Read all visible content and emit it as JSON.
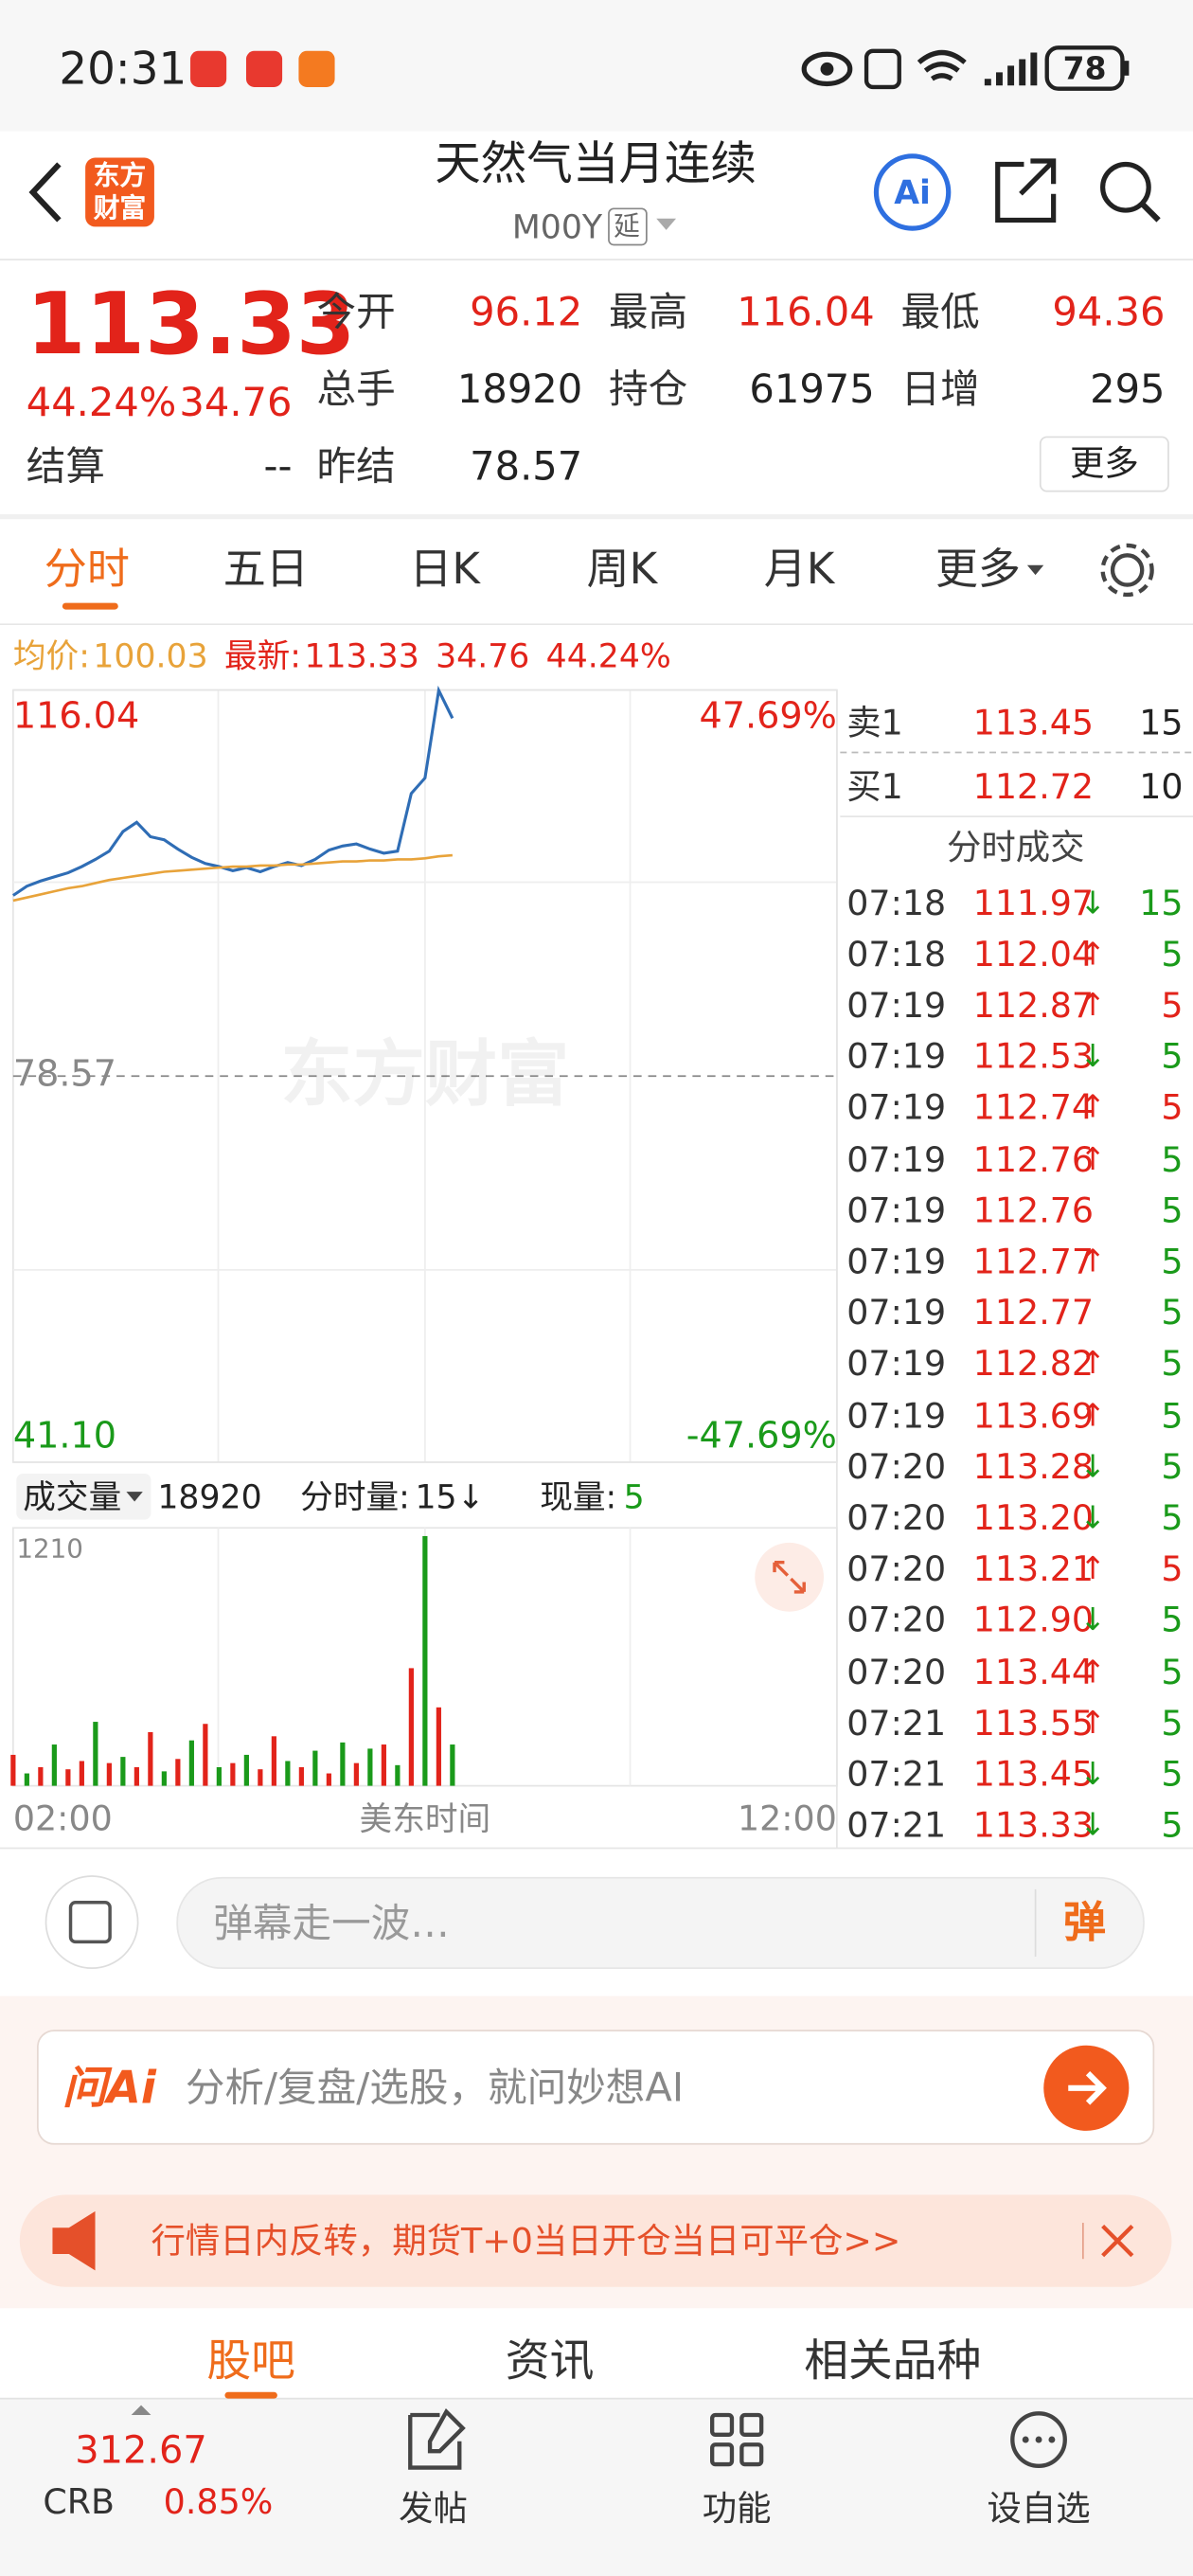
{
  "status_bar": {
    "time": "20:31",
    "battery": "78"
  },
  "header": {
    "logo": [
      "东方",
      "财富"
    ],
    "title": "天然气当月连续",
    "code": "M00Y",
    "tag": "延"
  },
  "quote": {
    "price": "113.33",
    "change_pct": "44.24%",
    "change": "34.76",
    "fields": [
      {
        "label": "今开",
        "value": "96.12"
      },
      {
        "label": "最高",
        "value": "116.04"
      },
      {
        "label": "最低",
        "value": "94.36"
      },
      {
        "label": "总手",
        "value": "18920"
      },
      {
        "label": "持仓",
        "value": "61975"
      },
      {
        "label": "日增",
        "value": "295"
      },
      {
        "label": "昨结",
        "value": "78.57"
      }
    ],
    "settle": {
      "label": "结算",
      "value": "--"
    },
    "more": "更多"
  },
  "tabs": [
    "分时",
    "五日",
    "日K",
    "周K",
    "月K",
    "更多"
  ],
  "info_bar": {
    "avg_label": "均价:",
    "avg": "100.03",
    "latest_label": "最新:",
    "latest": "113.33",
    "change": "34.76",
    "change_pct": "44.24%"
  },
  "watermark": "东方财富",
  "chart_data": [
    {
      "type": "line",
      "x": [
        "02:00",
        "02:10",
        "02:20",
        "02:30",
        "02:40",
        "02:50",
        "03:00",
        "03:10",
        "03:20",
        "03:30",
        "03:40",
        "03:50",
        "04:00",
        "04:10",
        "04:20",
        "04:30",
        "04:40",
        "04:50",
        "05:00",
        "05:10",
        "05:20",
        "05:30",
        "05:40",
        "05:50",
        "06:00",
        "06:10",
        "06:20",
        "06:30",
        "06:40",
        "06:50",
        "07:00",
        "07:10",
        "07:20"
      ],
      "series": [
        {
          "color": "#2f6db5",
          "values": [
            96.1,
            97.0,
            97.5,
            97.9,
            98.3,
            98.9,
            99.6,
            100.4,
            102.3,
            103.2,
            101.8,
            101.5,
            100.6,
            99.8,
            99.2,
            98.9,
            98.5,
            98.8,
            98.4,
            98.9,
            99.3,
            99.0,
            99.6,
            100.5,
            100.9,
            101.1,
            100.6,
            100.2,
            100.4,
            106.0,
            107.5,
            116.0,
            113.3
          ]
        },
        {
          "color": "#e8a33a",
          "values": [
            95.6,
            95.9,
            96.2,
            96.5,
            96.8,
            97.0,
            97.3,
            97.6,
            97.8,
            98.0,
            98.2,
            98.4,
            98.5,
            98.6,
            98.7,
            98.8,
            98.9,
            98.9,
            99.0,
            99.0,
            99.1,
            99.1,
            99.2,
            99.3,
            99.4,
            99.4,
            99.5,
            99.5,
            99.6,
            99.6,
            99.7,
            99.9,
            100.0
          ]
        }
      ],
      "xlim": [
        "02:00",
        "12:00"
      ],
      "ylim": [
        41.1,
        116.04
      ],
      "yticks": [
        116.04,
        78.57,
        {
          "value": 41.1,
          "label": "41.10"
        }
      ],
      "y2lim": [
        -47.69,
        47.69
      ],
      "y2ticks": [
        {
          "value": 47.69,
          "label": "47.69%"
        },
        {
          "value": -47.69,
          "label": "-47.69%"
        }
      ]
    },
    {
      "type": "bar",
      "x": [
        "02:00",
        "02:10",
        "02:20",
        "02:30",
        "02:40",
        "02:50",
        "03:00",
        "03:10",
        "03:20",
        "03:30",
        "03:40",
        "03:50",
        "04:00",
        "04:10",
        "04:20",
        "04:30",
        "04:40",
        "04:50",
        "05:00",
        "05:10",
        "05:20",
        "05:30",
        "05:40",
        "05:50",
        "06:00",
        "06:10",
        "06:20",
        "06:30",
        "06:40",
        "06:50",
        "07:00",
        "07:10",
        "07:20"
      ],
      "values": [
        150,
        60,
        90,
        200,
        80,
        120,
        310,
        110,
        140,
        90,
        260,
        70,
        130,
        220,
        300,
        90,
        110,
        150,
        80,
        240,
        120,
        90,
        170,
        60,
        210,
        110,
        180,
        200,
        100,
        570,
        1210,
        380,
        200
      ],
      "colors": [
        "#e2231a",
        "#1a9a1a",
        "#e2231a",
        "#1a9a1a",
        "#e2231a",
        "#e2231a",
        "#1a9a1a",
        "#e2231a",
        "#1a9a1a",
        "#e2231a",
        "#e2231a",
        "#1a9a1a",
        "#e2231a",
        "#1a9a1a",
        "#e2231a",
        "#1a9a1a",
        "#e2231a",
        "#1a9a1a",
        "#e2231a",
        "#e2231a",
        "#1a9a1a",
        "#e2231a",
        "#1a9a1a",
        "#e2231a",
        "#1a9a1a",
        "#e2231a",
        "#1a9a1a",
        "#e2231a",
        "#1a9a1a",
        "#e2231a",
        "#1a9a1a",
        "#e2231a",
        "#1a9a1a"
      ],
      "xlim": [
        "02:00",
        "12:00"
      ],
      "xticks": [
        "02:00",
        "12:00"
      ],
      "xlabel": "美东时间",
      "ylim": [
        0,
        1210
      ],
      "yticks": [
        1210
      ]
    }
  ],
  "volume_header": {
    "label": "成交量",
    "total": "18920",
    "tick_label": "分时量:",
    "tick": "15↓",
    "current_label": "现量:",
    "current": "5"
  },
  "order_book": [
    {
      "side": "卖1",
      "price": "113.45",
      "volume": "15"
    },
    {
      "side": "买1",
      "price": "112.72",
      "volume": "10"
    }
  ],
  "trades": {
    "title": "分时成交",
    "rows": [
      {
        "time": "07:18",
        "price": "111.97",
        "arrow": "↓",
        "volume": "15",
        "color": "#1a9a1a"
      },
      {
        "time": "07:18",
        "price": "112.04",
        "arrow": "↑",
        "volume": "5",
        "color": "#1a9a1a"
      },
      {
        "time": "07:19",
        "price": "112.87",
        "arrow": "↑",
        "volume": "5",
        "color": "#e2231a"
      },
      {
        "time": "07:19",
        "price": "112.53",
        "arrow": "↓",
        "volume": "5",
        "color": "#1a9a1a"
      },
      {
        "time": "07:19",
        "price": "112.74",
        "arrow": "↑",
        "volume": "5",
        "color": "#e2231a"
      },
      {
        "time": "07:19",
        "price": "112.76",
        "arrow": "↑",
        "volume": "5",
        "color": "#1a9a1a"
      },
      {
        "time": "07:19",
        "price": "112.76",
        "volume": "5",
        "color": "#1a9a1a"
      },
      {
        "time": "07:19",
        "price": "112.77",
        "arrow": "↑",
        "volume": "5",
        "color": "#1a9a1a"
      },
      {
        "time": "07:19",
        "price": "112.77",
        "volume": "5",
        "color": "#1a9a1a"
      },
      {
        "time": "07:19",
        "price": "112.82",
        "arrow": "↑",
        "volume": "5",
        "color": "#1a9a1a"
      },
      {
        "time": "07:19",
        "price": "113.69",
        "arrow": "↑",
        "volume": "5",
        "color": "#1a9a1a"
      },
      {
        "time": "07:20",
        "price": "113.28",
        "arrow": "↓",
        "volume": "5",
        "color": "#1a9a1a"
      },
      {
        "time": "07:20",
        "price": "113.20",
        "arrow": "↓",
        "volume": "5",
        "color": "#1a9a1a"
      },
      {
        "time": "07:20",
        "price": "113.21",
        "arrow": "↑",
        "volume": "5",
        "color": "#e2231a"
      },
      {
        "time": "07:20",
        "price": "112.90",
        "arrow": "↓",
        "volume": "5",
        "color": "#1a9a1a"
      },
      {
        "time": "07:20",
        "price": "113.44",
        "arrow": "↑",
        "volume": "5",
        "color": "#1a9a1a"
      },
      {
        "time": "07:21",
        "price": "113.55",
        "arrow": "↑",
        "volume": "5",
        "color": "#1a9a1a"
      },
      {
        "time": "07:21",
        "price": "113.45",
        "arrow": "↓",
        "volume": "5",
        "color": "#1a9a1a"
      },
      {
        "time": "07:21",
        "price": "113.33",
        "arrow": "↓",
        "volume": "5",
        "color": "#1a9a1a"
      }
    ]
  },
  "comment": {
    "placeholder": "弹幕走一波…",
    "button": "弹"
  },
  "ai_bar": {
    "brand": "问Ai",
    "placeholder": "分析/复盘/选股，就问妙想AI"
  },
  "banner": "行情日内反转，期货T+0当日开仓当日可平仓>>",
  "section_tabs": [
    "股吧",
    "资讯",
    "相关品种"
  ],
  "bottom_nav": {
    "index": {
      "value": "312.67",
      "name": "CRB",
      "change": "0.85%"
    },
    "items": [
      "发帖",
      "功能",
      "设自选"
    ]
  }
}
